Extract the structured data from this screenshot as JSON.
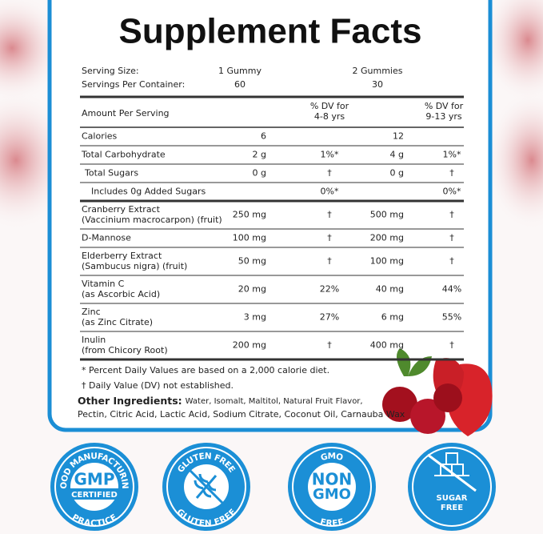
{
  "title": "Supplement Facts",
  "serving": [
    {
      "label": "Serving Size:",
      "col1": "1 Gummy",
      "col2": "2 Gummies"
    },
    {
      "label": "Servings Per Container:",
      "col1": "60",
      "col2": "30"
    }
  ],
  "header": {
    "label": "Amount Per Serving",
    "dv1": [
      "% DV for",
      "4-8 yrs"
    ],
    "dv2": [
      "% DV for",
      "9-13 yrs"
    ]
  },
  "nutrients": [
    {
      "name": [
        "Calories"
      ],
      "amt1": "6",
      "amt2": "12"
    },
    {
      "name": [
        "Total Carbohydrate"
      ],
      "amt1": "2 g",
      "dv1": "1%*",
      "amt2": "4 g",
      "dv2": "1%*"
    },
    {
      "name": [
        "Total Sugars"
      ],
      "amt1": "0 g",
      "dv1": "†",
      "amt2": "0 g",
      "dv2": "†"
    },
    {
      "name": [
        "Includes 0g Added Sugars"
      ],
      "dv1": "0%*",
      "dv2": "0%*"
    },
    {
      "name": [
        "Cranberry Extract",
        "(Vaccinium macrocarpon) (fruit)"
      ],
      "amt1": "250 mg",
      "dv1": "†",
      "amt2": "500 mg",
      "dv2": "†"
    },
    {
      "name": [
        "D-Mannose"
      ],
      "amt1": "100 mg",
      "dv1": "†",
      "amt2": "200 mg",
      "dv2": "†"
    },
    {
      "name": [
        "Elderberry Extract",
        "(Sambucus nigra) (fruit)"
      ],
      "amt1": "50 mg",
      "dv1": "†",
      "amt2": "100 mg",
      "dv2": "†"
    },
    {
      "name": [
        "Vitamin C",
        "(as Ascorbic Acid)"
      ],
      "amt1": "20 mg",
      "dv1": "22%",
      "amt2": "40 mg",
      "dv2": "44%"
    },
    {
      "name": [
        "Zinc",
        "(as Zinc Citrate)"
      ],
      "amt1": "3 mg",
      "dv1": "27%",
      "amt2": "6 mg",
      "dv2": "55%"
    },
    {
      "name": [
        "Inulin",
        "(from Chicory Root)"
      ],
      "amt1": "200 mg",
      "dv1": "†",
      "amt2": "400 mg",
      "dv2": "†"
    }
  ],
  "footnotes": [
    "* Percent Daily Values are based on a 2,000 calorie diet.",
    "† Daily Value (DV) not established."
  ],
  "other_ingredients": {
    "label": "Other Ingredients:",
    "text": [
      "Water, Isomalt, Maltitol, Natural Fruit Flavor,",
      "Pectin, Citric Acid, Lactic Acid, Sodium Citrate, Coconut Oil, Carnauba Wax"
    ]
  },
  "badges": [
    {
      "top": "GOOD MANUFACTURING",
      "bottom": "PRACTICE",
      "center": [
        "GMP",
        "CERTIFIED"
      ]
    },
    {
      "top": "GLUTEN FREE",
      "bottom": "GLUTEN FREE"
    },
    {
      "top": "GMO",
      "bottom": "FREE",
      "center": [
        "NON",
        "GMO"
      ]
    },
    {
      "center": [
        "SUGAR",
        "FREE"
      ]
    }
  ]
}
